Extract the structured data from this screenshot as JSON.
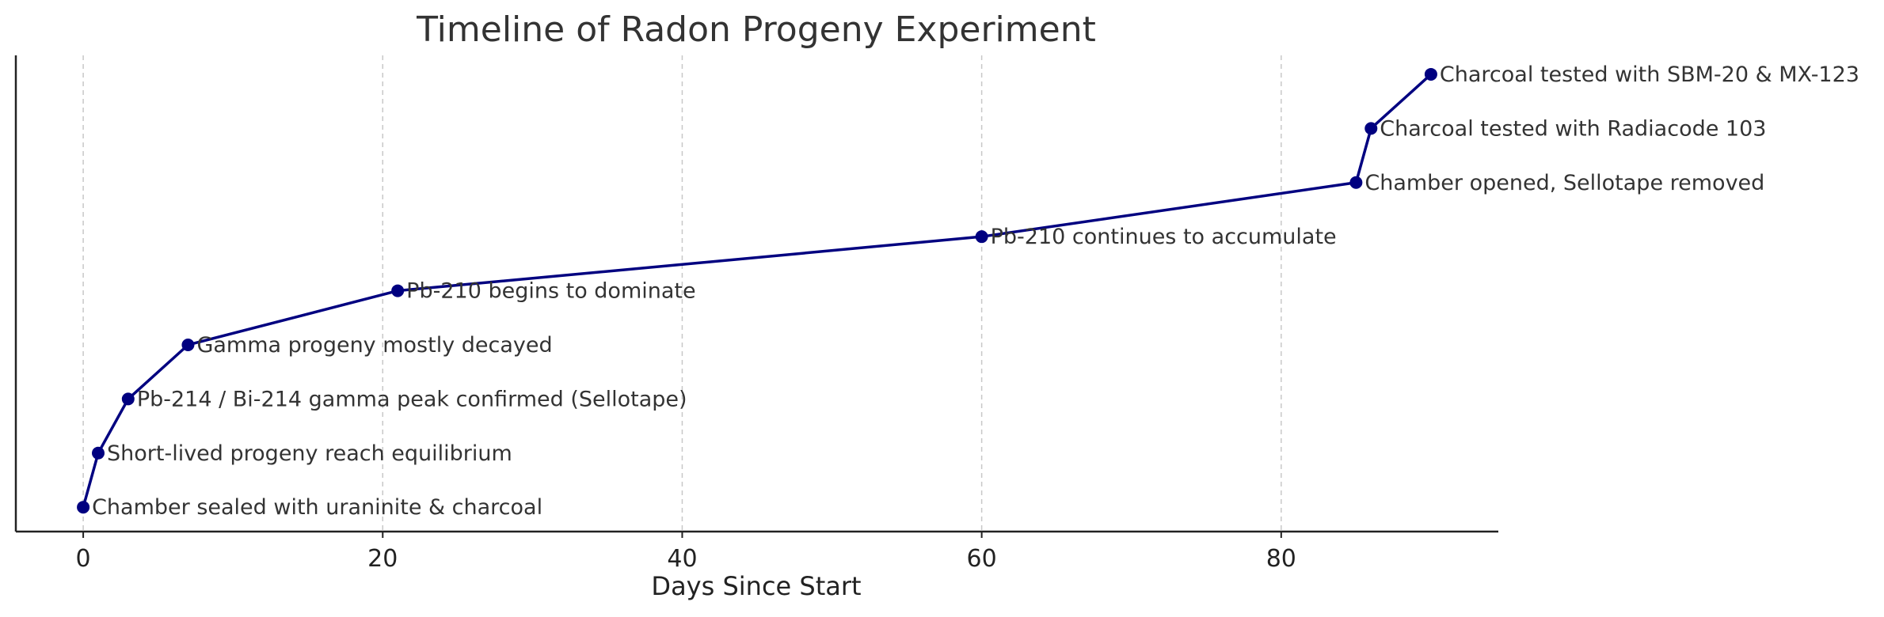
{
  "chart_data": {
    "type": "line",
    "title": "Timeline of Radon Progeny Experiment",
    "xlabel": "Days Since Start",
    "ylabel": "",
    "xlim": [
      -4.5,
      94.5
    ],
    "ylim": [
      -0.45,
      8.35
    ],
    "xticks": [
      0,
      20,
      40,
      60,
      80
    ],
    "grid": "vertical dashed",
    "color": "#000080",
    "points": [
      {
        "x": 0,
        "y": 0,
        "label": "Chamber sealed with uraninite & charcoal"
      },
      {
        "x": 1,
        "y": 1,
        "label": "Short-lived progeny reach equilibrium"
      },
      {
        "x": 3,
        "y": 2,
        "label": "Pb-214 / Bi-214 gamma peak confirmed (Sellotape)"
      },
      {
        "x": 7,
        "y": 3,
        "label": "Gamma progeny mostly decayed"
      },
      {
        "x": 21,
        "y": 4,
        "label": "Pb-210 begins to dominate"
      },
      {
        "x": 60,
        "y": 5,
        "label": "Pb-210 continues to accumulate"
      },
      {
        "x": 85,
        "y": 6,
        "label": "Chamber opened, Sellotape removed"
      },
      {
        "x": 86,
        "y": 7,
        "label": "Charcoal tested with Radiacode 103"
      },
      {
        "x": 90,
        "y": 8,
        "label": "Charcoal tested with SBM-20 & MX-123"
      }
    ]
  }
}
